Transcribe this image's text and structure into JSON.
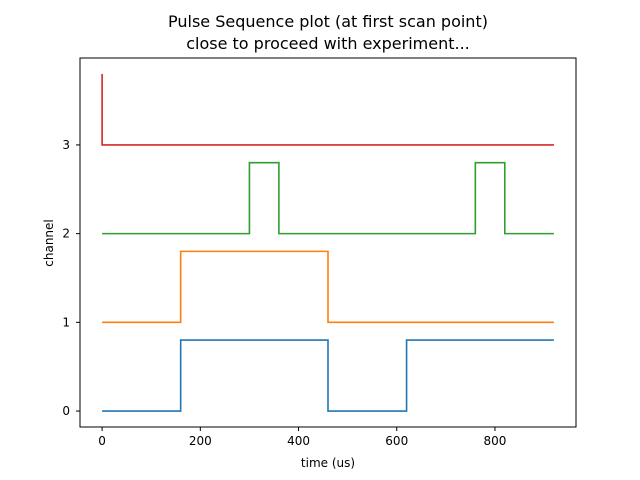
{
  "chart_data": {
    "type": "line",
    "title_lines": [
      "Pulse Sequence plot (at first scan point)",
      "close to proceed with experiment..."
    ],
    "xlabel": "time (us)",
    "ylabel": "channel",
    "xlim": [
      -45,
      965
    ],
    "ylim": [
      -0.18,
      3.98
    ],
    "xticks": [
      0,
      200,
      400,
      600,
      800
    ],
    "yticks": [
      0,
      1,
      2,
      3
    ],
    "grid": false,
    "series": [
      {
        "color": "#1f77b4",
        "step_points": [
          [
            0,
            0
          ],
          [
            160,
            0
          ],
          [
            160,
            0.8
          ],
          [
            460,
            0.8
          ],
          [
            460,
            0
          ],
          [
            620,
            0
          ],
          [
            620,
            0.8
          ],
          [
            920,
            0.8
          ]
        ]
      },
      {
        "color": "#ff7f0e",
        "step_points": [
          [
            0,
            1
          ],
          [
            160,
            1
          ],
          [
            160,
            1.8
          ],
          [
            460,
            1.8
          ],
          [
            460,
            1
          ],
          [
            920,
            1
          ]
        ]
      },
      {
        "color": "#2ca02c",
        "step_points": [
          [
            0,
            2
          ],
          [
            300,
            2
          ],
          [
            300,
            2.8
          ],
          [
            360,
            2.8
          ],
          [
            360,
            2
          ],
          [
            760,
            2
          ],
          [
            760,
            2.8
          ],
          [
            820,
            2.8
          ],
          [
            820,
            2
          ],
          [
            920,
            2
          ]
        ]
      },
      {
        "color": "#d62728",
        "step_points": [
          [
            0,
            3.8
          ],
          [
            0,
            3
          ],
          [
            920,
            3
          ]
        ]
      }
    ]
  }
}
